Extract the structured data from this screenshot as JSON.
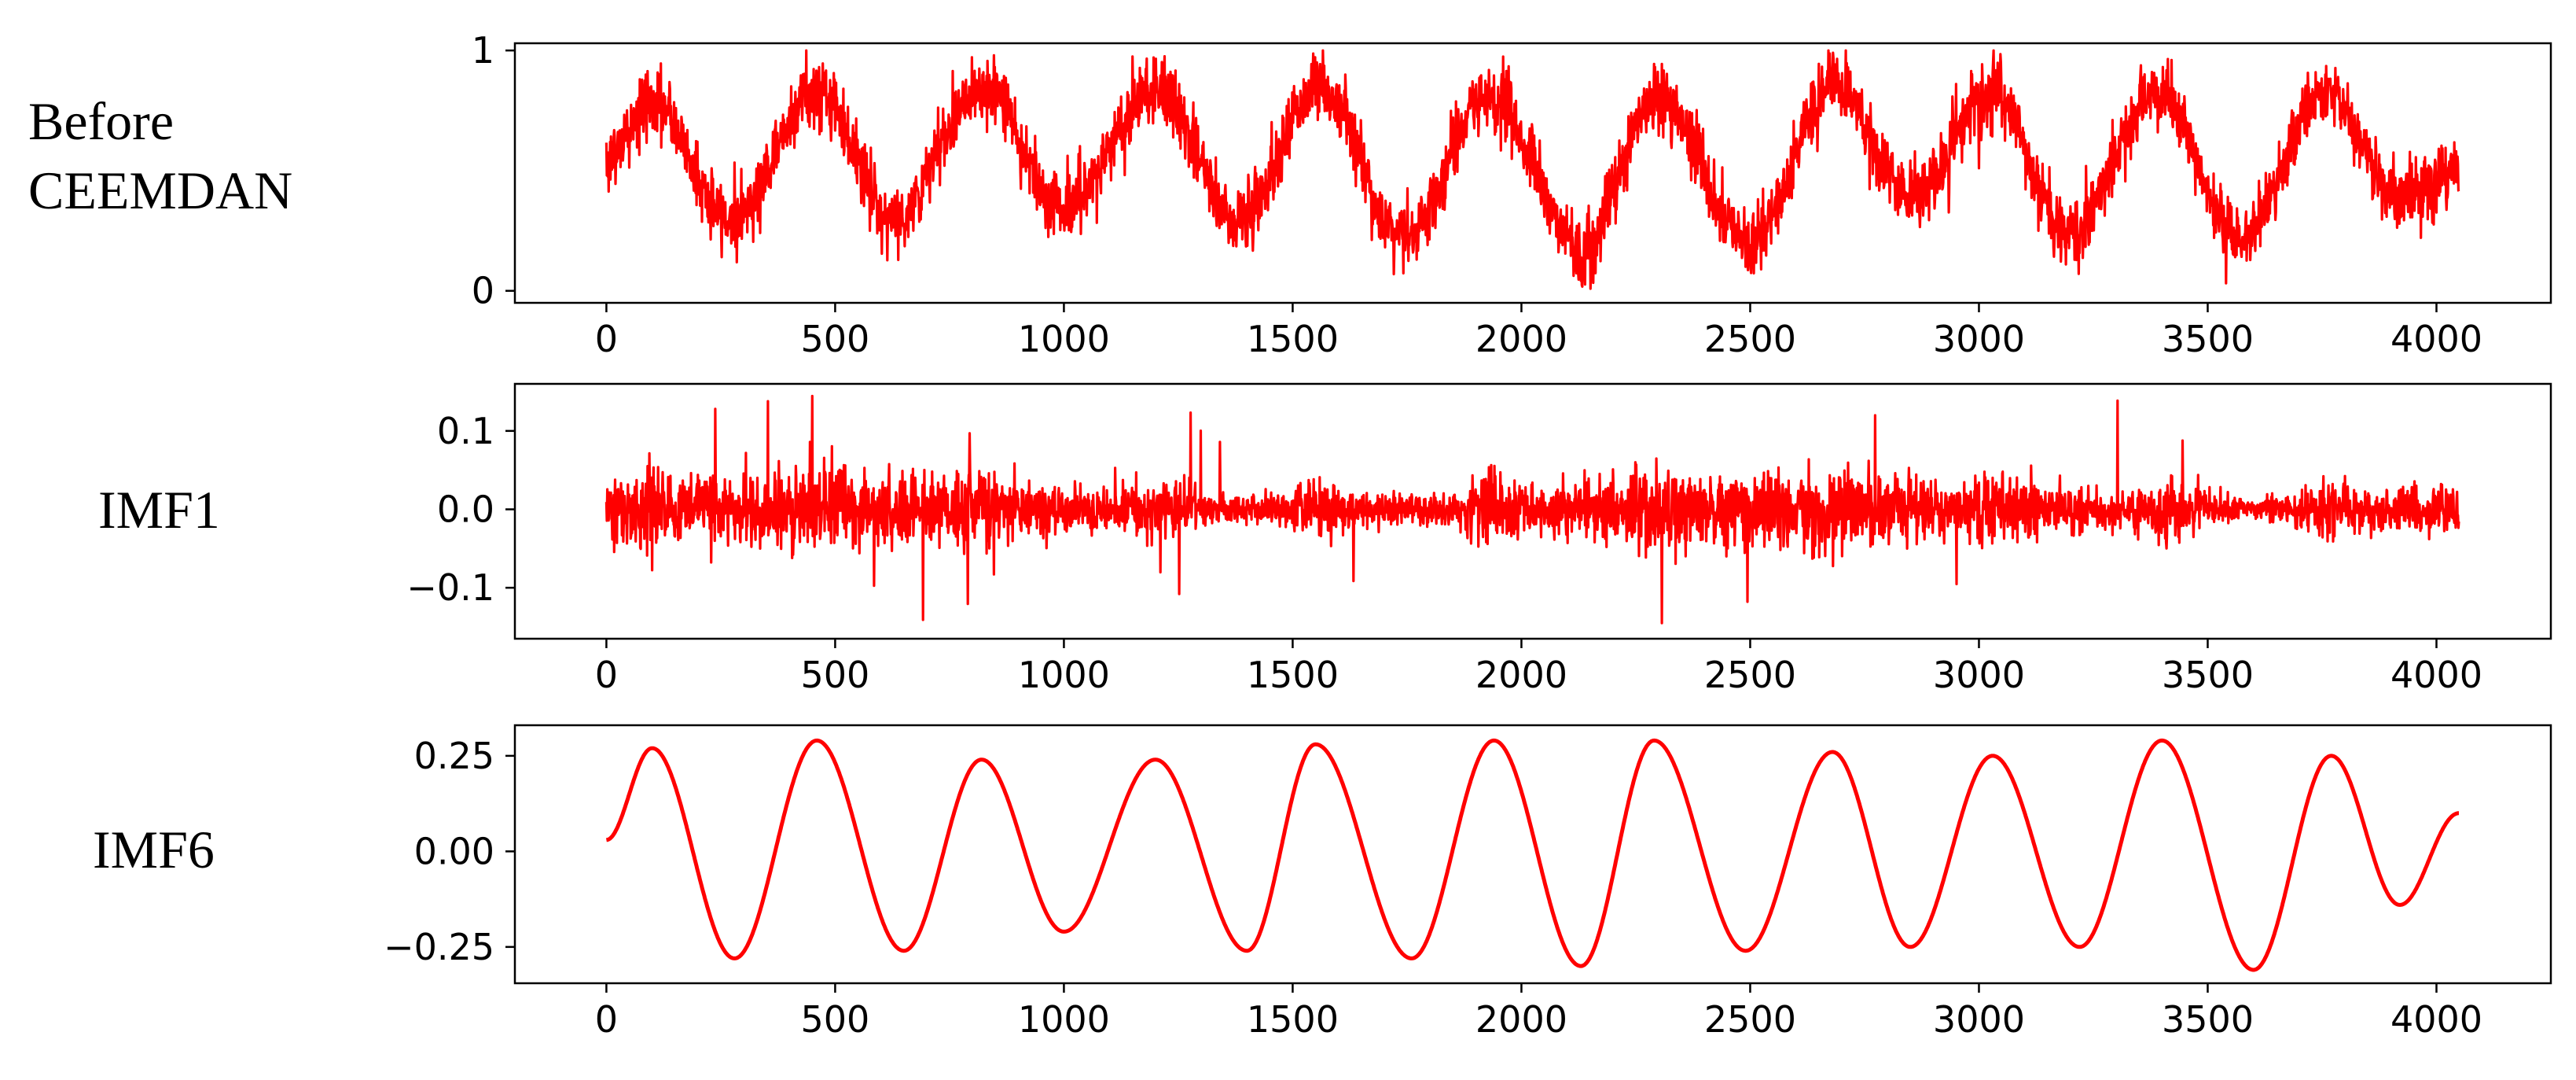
{
  "figure": {
    "row_labels": [
      "Before\nCEEMDAN",
      "IMF1",
      "IMF6"
    ]
  },
  "chart_data": [
    {
      "type": "line",
      "name": "before-ceemdan",
      "color": "#ff0000",
      "xlim": [
        -200,
        4250
      ],
      "ylim": [
        -0.05,
        1.03
      ],
      "x_ticks": [
        0,
        500,
        1000,
        1500,
        2000,
        2500,
        3000,
        3500,
        4000
      ],
      "y_ticks": [
        0,
        1
      ],
      "x_tick_labels": [
        "0",
        "500",
        "1000",
        "1500",
        "2000",
        "2500",
        "3000",
        "3500",
        "4000"
      ],
      "y_tick_labels": [
        "0",
        "1"
      ],
      "signal": {
        "n_points": 4050,
        "x_start": 0,
        "x_end": 4049,
        "noise_amplitude": 0.17,
        "style": "noisy"
      },
      "x": [
        0,
        100,
        270,
        460,
        630,
        820,
        1000,
        1200,
        1380,
        1560,
        1740,
        1930,
        2130,
        2300,
        2500,
        2680,
        2850,
        3020,
        3200,
        3390,
        3570,
        3760,
        3920,
        4049
      ],
      "y": [
        0.55,
        0.78,
        0.3,
        0.83,
        0.3,
        0.85,
        0.35,
        0.84,
        0.3,
        0.85,
        0.22,
        0.8,
        0.18,
        0.8,
        0.2,
        0.85,
        0.4,
        0.82,
        0.25,
        0.82,
        0.22,
        0.82,
        0.38,
        0.5
      ]
    },
    {
      "type": "line",
      "name": "imf1",
      "color": "#ff0000",
      "xlim": [
        -200,
        4250
      ],
      "ylim": [
        -0.165,
        0.16
      ],
      "x_ticks": [
        0,
        500,
        1000,
        1500,
        2000,
        2500,
        3000,
        3500,
        4000
      ],
      "y_ticks": [
        0.1,
        0.0,
        -0.1
      ],
      "x_tick_labels": [
        "0",
        "500",
        "1000",
        "1500",
        "2000",
        "2500",
        "3000",
        "3500",
        "4000"
      ],
      "y_tick_labels": [
        "0.1",
        "0.0",
        "−0.1"
      ],
      "signal": {
        "n_points": 4050,
        "x_start": 0,
        "x_end": 4049,
        "noise_amplitude": 0.05,
        "style": "oscillation"
      },
      "x": [
        0,
        4049
      ],
      "y": [
        0.0,
        0.0
      ]
    },
    {
      "type": "line",
      "name": "imf6",
      "color": "#ff0000",
      "xlim": [
        -200,
        4250
      ],
      "ylim": [
        -0.345,
        0.33
      ],
      "x_ticks": [
        0,
        500,
        1000,
        1500,
        2000,
        2500,
        3000,
        3500,
        4000
      ],
      "y_ticks": [
        0.25,
        0.0,
        -0.25
      ],
      "x_tick_labels": [
        "0",
        "500",
        "1000",
        "1500",
        "2000",
        "2500",
        "3000",
        "3500",
        "4000"
      ],
      "y_tick_labels": [
        "0.25",
        "0.00",
        "−0.25"
      ],
      "signal": {
        "n_points": 4050,
        "x_start": 0,
        "x_end": 4049,
        "noise_amplitude": 0,
        "style": "smooth"
      },
      "x": [
        0,
        100,
        280,
        460,
        650,
        820,
        1000,
        1200,
        1400,
        1550,
        1760,
        1940,
        2130,
        2290,
        2490,
        2680,
        2850,
        3030,
        3220,
        3400,
        3600,
        3770,
        3920,
        4049
      ],
      "y": [
        0.03,
        0.27,
        -0.28,
        0.29,
        -0.26,
        0.24,
        -0.21,
        0.24,
        -0.26,
        0.28,
        -0.28,
        0.29,
        -0.3,
        0.29,
        -0.26,
        0.26,
        -0.25,
        0.25,
        -0.25,
        0.29,
        -0.31,
        0.25,
        -0.14,
        0.1
      ]
    }
  ]
}
